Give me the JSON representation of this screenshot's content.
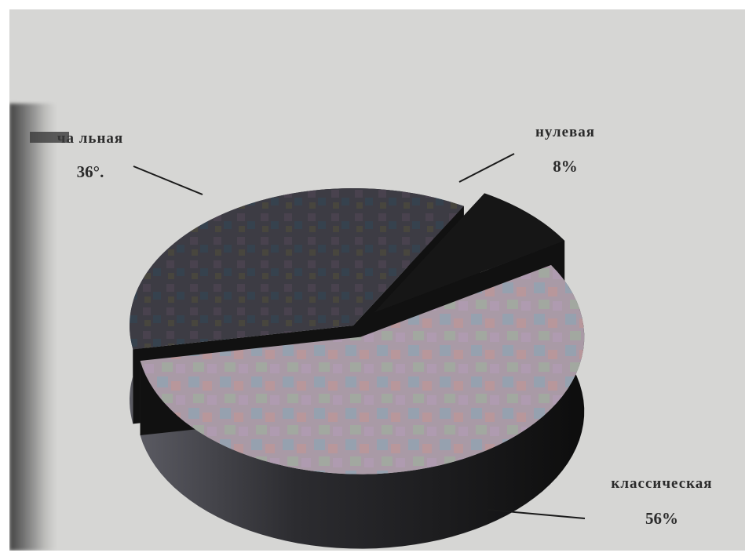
{
  "chart_data": {
    "type": "pie",
    "style": "3d-exploded",
    "title": "",
    "slices": [
      {
        "label": "…чальная",
        "label_visible": "ча льная",
        "value": 36,
        "value_text": "36°.",
        "color": "#3b3b42"
      },
      {
        "label": "нулевая",
        "value": 8,
        "value_text": "8%",
        "color": "#1a1a1a"
      },
      {
        "label": "классическая",
        "value": 56,
        "value_text": "56%",
        "color": "#a99aa6"
      }
    ],
    "legend": "none",
    "label_placement": "outside-with-leader-lines"
  }
}
